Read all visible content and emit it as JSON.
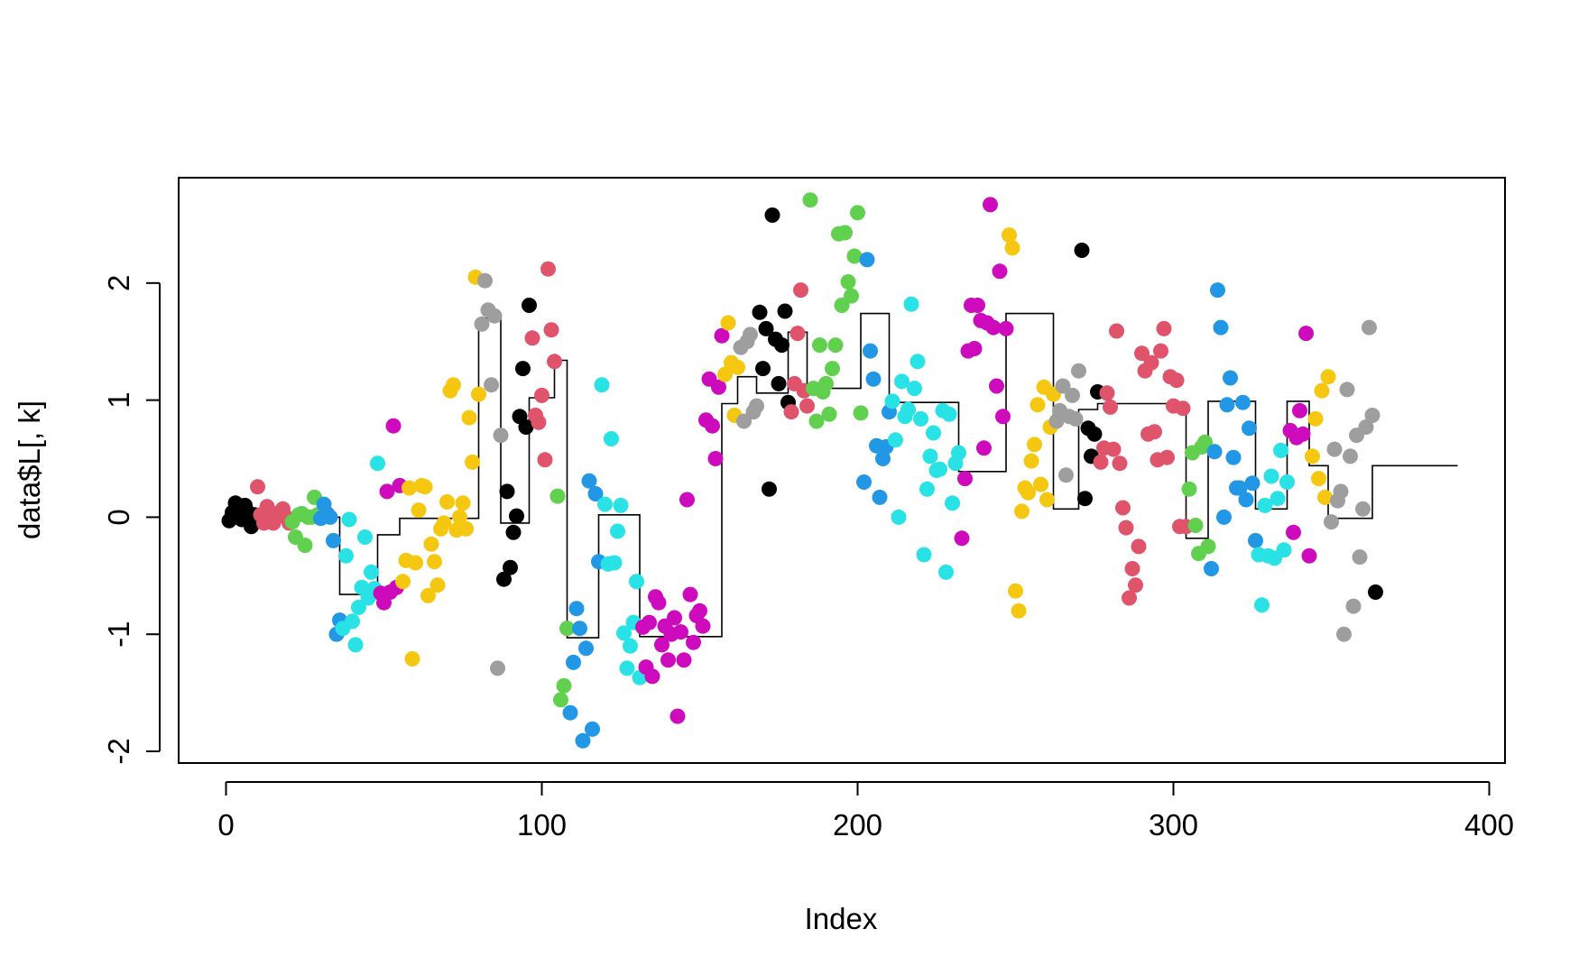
{
  "chart_data": {
    "type": "scatter",
    "title": "",
    "xlabel": "Index",
    "ylabel": "data$L[, k]",
    "xlim": [
      -15,
      405
    ],
    "ylim": [
      -2.1,
      2.9
    ],
    "xticks": [
      0,
      100,
      200,
      300,
      400
    ],
    "xtick_labels": [
      "0",
      "100",
      "200",
      "300",
      "400"
    ],
    "yticks": [
      -2,
      -1,
      0,
      1,
      2
    ],
    "ytick_labels": [
      "-2",
      "-1",
      "0",
      "1",
      "2"
    ],
    "grid": false,
    "legend": "none",
    "palette": [
      "#000000",
      "#DF536B",
      "#61D04F",
      "#2297E6",
      "#28E2E5",
      "#CD0BBC",
      "#F5C710",
      "#9E9E9E"
    ],
    "segments": [
      {
        "start": 1,
        "end": 9,
        "level": 0.0,
        "color": 0
      },
      {
        "start": 9,
        "end": 20,
        "level": 0.0,
        "color": 1
      },
      {
        "start": 20,
        "end": 29,
        "level": 0.0,
        "color": 2
      },
      {
        "start": 29,
        "end": 36,
        "level": 0.0,
        "color": 3
      },
      {
        "start": 36,
        "end": 48,
        "level": -0.66,
        "color": 4
      },
      {
        "start": 48,
        "end": 55,
        "level": -0.15,
        "color": 5
      },
      {
        "start": 55,
        "end": 80,
        "level": -0.01,
        "color": 6
      },
      {
        "start": 80,
        "end": 87,
        "level": 1.7,
        "color": 7
      },
      {
        "start": 87,
        "end": 96,
        "level": -0.05,
        "color": 0
      },
      {
        "start": 96,
        "end": 104,
        "level": 1.02,
        "color": 1
      },
      {
        "start": 104,
        "end": 108,
        "level": 1.34,
        "color": 2
      },
      {
        "start": 108,
        "end": 118,
        "level": -1.03,
        "color": 3
      },
      {
        "start": 118,
        "end": 131,
        "level": 0.02,
        "color": 4
      },
      {
        "start": 131,
        "end": 157,
        "level": -1.02,
        "color": 5
      },
      {
        "start": 157,
        "end": 162,
        "level": 0.97,
        "color": 6
      },
      {
        "start": 162,
        "end": 168,
        "level": 1.2,
        "color": 7
      },
      {
        "start": 168,
        "end": 178,
        "level": 1.06,
        "color": 0
      },
      {
        "start": 178,
        "end": 184,
        "level": 1.58,
        "color": 1
      },
      {
        "start": 184,
        "end": 201,
        "level": 1.1,
        "color": 2
      },
      {
        "start": 201,
        "end": 210,
        "level": 1.74,
        "color": 3
      },
      {
        "start": 210,
        "end": 232,
        "level": 0.98,
        "color": 4
      },
      {
        "start": 232,
        "end": 247,
        "level": 0.39,
        "color": 5
      },
      {
        "start": 247,
        "end": 262,
        "level": 1.74,
        "color": 6
      },
      {
        "start": 262,
        "end": 270,
        "level": 0.07,
        "color": 7
      },
      {
        "start": 270,
        "end": 276,
        "level": 0.92,
        "color": 0
      },
      {
        "start": 276,
        "end": 304,
        "level": 0.97,
        "color": 1
      },
      {
        "start": 304,
        "end": 311,
        "level": -0.18,
        "color": 2
      },
      {
        "start": 311,
        "end": 326,
        "level": 0.99,
        "color": 3
      },
      {
        "start": 326,
        "end": 336,
        "level": 0.07,
        "color": 4
      },
      {
        "start": 336,
        "end": 343,
        "level": 0.99,
        "color": 5
      },
      {
        "start": 343,
        "end": 349,
        "level": 0.44,
        "color": 6
      },
      {
        "start": 349,
        "end": 363,
        "level": -0.01,
        "color": 7
      },
      {
        "start": 363,
        "end": 390,
        "level": 0.44,
        "color": 0
      }
    ],
    "y": [
      -0.03,
      0.04,
      0.12,
      0.0,
      -0.02,
      0.1,
      0.04,
      -0.08,
      0.02,
      0.26,
      0.02,
      -0.05,
      0.09,
      0.04,
      -0.05,
      0.0,
      0.04,
      0.07,
      0.0,
      -0.05,
      -0.04,
      -0.17,
      0.02,
      0.03,
      -0.24,
      0.0,
      0.0,
      0.17,
      0.02,
      -0.01,
      0.11,
      0.03,
      0.0,
      -0.2,
      -1.0,
      -0.88,
      -0.95,
      -0.33,
      -0.02,
      -0.89,
      -1.09,
      -0.77,
      -0.6,
      -0.17,
      -0.69,
      -0.47,
      -0.61,
      0.46,
      -0.65,
      -0.73,
      0.22,
      -0.64,
      0.78,
      -0.6,
      0.27,
      -0.55,
      -0.37,
      0.25,
      -1.21,
      -0.39,
      0.06,
      0.27,
      0.26,
      -0.67,
      -0.23,
      -0.38,
      -0.58,
      -0.1,
      -0.05,
      0.13,
      1.08,
      1.13,
      -0.11,
      0.0,
      0.12,
      -0.1,
      0.85,
      0.47,
      2.05,
      1.05,
      1.65,
      2.02,
      1.77,
      1.13,
      1.72,
      -1.29,
      0.7,
      -0.53,
      0.22,
      -0.43,
      -0.13,
      0.01,
      0.86,
      1.27,
      0.77,
      1.81,
      1.53,
      0.87,
      0.81,
      1.04,
      0.49,
      2.12,
      1.6,
      1.33,
      0.18,
      -1.56,
      -1.44,
      -0.95,
      -1.67,
      -1.24,
      -0.78,
      -0.95,
      -1.91,
      -1.12,
      0.31,
      -1.81,
      0.2,
      -0.38,
      1.13,
      0.11,
      -0.4,
      0.67,
      -0.39,
      -0.12,
      0.1,
      -0.99,
      -1.29,
      -1.1,
      -0.9,
      -0.55,
      -1.37,
      -0.94,
      -1.28,
      -0.9,
      -1.36,
      -0.68,
      -0.73,
      -1.09,
      -0.93,
      -1.22,
      -1.0,
      -0.86,
      -1.7,
      -0.98,
      -1.22,
      0.15,
      -0.66,
      -1.07,
      -0.84,
      -0.8,
      -0.93,
      0.83,
      1.18,
      0.78,
      0.5,
      1.11,
      1.55,
      1.22,
      1.66,
      1.32,
      0.87,
      1.28,
      1.45,
      0.82,
      1.5,
      1.56,
      0.9,
      0.95,
      1.75,
      1.27,
      1.61,
      0.24,
      2.58,
      1.52,
      1.14,
      1.47,
      1.76,
      0.98,
      0.9,
      1.14,
      1.57,
      1.94,
      1.08,
      0.95,
      2.71,
      1.1,
      0.82,
      1.47,
      1.07,
      1.14,
      0.88,
      1.27,
      1.47,
      2.42,
      1.81,
      2.43,
      2.01,
      1.89,
      2.23,
      2.6,
      0.89,
      0.3,
      2.2,
      1.42,
      1.18,
      0.61,
      0.17,
      0.5,
      0.6,
      0.9,
      0.99,
      0.66,
      0.0,
      1.16,
      0.86,
      0.92,
      1.82,
      1.1,
      1.33,
      0.84,
      -0.32,
      0.24,
      0.52,
      0.72,
      0.4,
      0.41,
      0.91,
      -0.47,
      0.88,
      0.12,
      0.46,
      0.55,
      -0.18,
      0.33,
      1.42,
      1.81,
      1.44,
      1.81,
      1.68,
      0.59,
      1.66,
      2.67,
      1.62,
      1.12,
      2.1,
      0.86,
      1.61,
      2.41,
      2.3,
      -0.63,
      -0.8,
      0.05,
      0.25,
      0.21,
      0.48,
      0.62,
      0.96,
      0.28,
      1.11,
      0.15,
      0.77,
      1.05,
      0.82,
      0.91,
      1.12,
      0.36,
      0.86,
      1.04,
      0.84,
      1.25,
      2.28,
      0.16,
      0.76,
      0.52,
      0.71,
      1.07,
      0.47,
      0.59,
      1.06,
      0.94,
      0.58,
      1.59,
      0.46,
      0.08,
      -0.09,
      -0.69,
      -0.44,
      -0.58,
      -0.25,
      1.4,
      1.25,
      0.71,
      1.32,
      0.73,
      0.49,
      1.42,
      1.61,
      0.51,
      1.2,
      0.95,
      1.17,
      -0.08,
      0.93,
      -0.08,
      0.24,
      0.55,
      -0.07,
      -0.31,
      0.6,
      0.64,
      -0.25,
      -0.44,
      0.56,
      1.94,
      1.62,
      0.0,
      0.96,
      1.19,
      0.51,
      0.25,
      0.25,
      0.98,
      0.15,
      0.76,
      0.29,
      -0.2,
      -0.32,
      -0.75,
      0.1,
      -0.33,
      0.35,
      -0.35,
      0.16,
      0.57,
      -0.28,
      0.3,
      0.74,
      -0.13,
      0.68,
      0.91,
      0.71,
      1.57,
      -0.33,
      0.52,
      0.84,
      0.33,
      1.08,
      0.17,
      1.2,
      -0.04,
      0.58,
      0.14,
      0.22,
      -1.0,
      1.09,
      0.52,
      -0.76,
      0.7,
      -0.34,
      0.07,
      0.77,
      1.62,
      0.87,
      -0.64
    ]
  }
}
